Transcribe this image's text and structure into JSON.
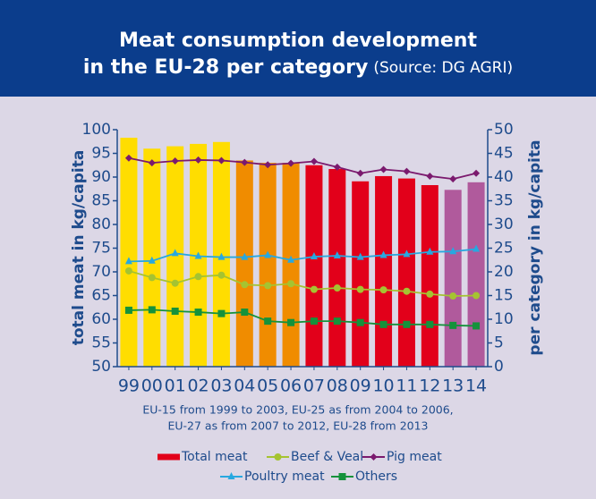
{
  "chart_data": {
    "type": "bar",
    "title": [
      "Meat consumption development",
      "in the EU-28 per category"
    ],
    "source": "(Source: DG AGRI)",
    "ylabel": "total meat in kg/capita",
    "y2label": "per category in kg/capita",
    "note": [
      "EU-15 from 1999 to 2003, EU-25 as from 2004 to 2006,",
      "EU-27 as from 2007 to 2012, EU-28 from 2013"
    ],
    "categories": [
      "99",
      "00",
      "01",
      "02",
      "03",
      "04",
      "05",
      "06",
      "07",
      "08",
      "09",
      "10",
      "11",
      "12",
      "13",
      "14"
    ],
    "ylim": [
      50,
      100
    ],
    "yticks": [
      50,
      55,
      60,
      65,
      70,
      75,
      80,
      85,
      90,
      95,
      100
    ],
    "y2lim": [
      0,
      50
    ],
    "y2ticks": [
      0,
      5,
      10,
      15,
      20,
      25,
      30,
      35,
      40,
      45,
      50
    ],
    "series": [
      {
        "name": "Total meat",
        "type": "bar",
        "color": "#e2001a",
        "bar_colors": [
          "#ffdd00",
          "#ffdd00",
          "#ffdd00",
          "#ffdd00",
          "#ffdd00",
          "#f08c00",
          "#f08c00",
          "#f08c00",
          "#e2001a",
          "#e2001a",
          "#e2001a",
          "#e2001a",
          "#e2001a",
          "#e2001a",
          "#b05a9c",
          "#b05a9c"
        ],
        "values": [
          98.3,
          96,
          96.5,
          97,
          97.4,
          93.5,
          93,
          93,
          92.5,
          91.7,
          89.1,
          90.2,
          89.7,
          88.3,
          87.3,
          88.9
        ]
      },
      {
        "name": "Beef & Veal",
        "type": "line",
        "axis": "y2",
        "color": "#a5c331",
        "marker": "circle",
        "values": [
          20.2,
          18.8,
          17.6,
          19,
          19.3,
          17.3,
          17.1,
          17.5,
          16.3,
          16.6,
          16.3,
          16.2,
          15.9,
          15.3,
          14.9,
          15
        ]
      },
      {
        "name": "Pig meat",
        "type": "line",
        "axis": "y2",
        "color": "#7b1a6e",
        "marker": "diamond",
        "values": [
          44,
          43,
          43.4,
          43.6,
          43.5,
          43.1,
          42.6,
          42.9,
          43.3,
          42.1,
          40.8,
          41.6,
          41.2,
          40.2,
          39.6,
          40.8
        ]
      },
      {
        "name": "Poultry meat",
        "type": "line",
        "axis": "y2",
        "color": "#27a8e0",
        "marker": "triangle",
        "values": [
          22.2,
          22.3,
          23.9,
          23.3,
          23.1,
          23.1,
          23.5,
          22.5,
          23.2,
          23.4,
          23.1,
          23.5,
          23.7,
          24.2,
          24.3,
          24.8
        ]
      },
      {
        "name": "Others",
        "type": "line",
        "axis": "y2",
        "color": "#15923b",
        "marker": "square",
        "values": [
          11.9,
          12,
          11.7,
          11.5,
          11.2,
          11.5,
          9.6,
          9.3,
          9.6,
          9.6,
          9.3,
          8.9,
          8.9,
          8.9,
          8.7,
          8.6
        ]
      }
    ]
  }
}
